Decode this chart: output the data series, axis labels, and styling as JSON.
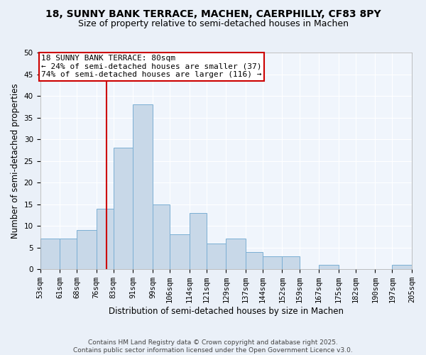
{
  "title1": "18, SUNNY BANK TERRACE, MACHEN, CAERPHILLY, CF83 8PY",
  "title2": "Size of property relative to semi-detached houses in Machen",
  "xlabel": "Distribution of semi-detached houses by size in Machen",
  "ylabel": "Number of semi-detached properties",
  "bin_labels": [
    "53sqm",
    "61sqm",
    "68sqm",
    "76sqm",
    "83sqm",
    "91sqm",
    "99sqm",
    "106sqm",
    "114sqm",
    "121sqm",
    "129sqm",
    "137sqm",
    "144sqm",
    "152sqm",
    "159sqm",
    "167sqm",
    "175sqm",
    "182sqm",
    "190sqm",
    "197sqm",
    "205sqm"
  ],
  "bin_edges": [
    53,
    61,
    68,
    76,
    83,
    91,
    99,
    106,
    114,
    121,
    129,
    137,
    144,
    152,
    159,
    167,
    175,
    182,
    190,
    197,
    205
  ],
  "values": [
    7,
    7,
    9,
    14,
    28,
    38,
    15,
    8,
    13,
    6,
    7,
    4,
    3,
    3,
    0,
    1,
    0,
    0,
    0,
    1,
    0
  ],
  "bar_color": "#c8d8e8",
  "bar_edge_color": "#7bafd4",
  "vline_x": 80,
  "vline_color": "#cc0000",
  "annotation_title": "18 SUNNY BANK TERRACE: 80sqm",
  "annotation_line1": "← 24% of semi-detached houses are smaller (37)",
  "annotation_line2": "74% of semi-detached houses are larger (116) →",
  "annotation_box_edge": "#cc0000",
  "ylim": [
    0,
    50
  ],
  "yticks": [
    0,
    5,
    10,
    15,
    20,
    25,
    30,
    35,
    40,
    45,
    50
  ],
  "footer": "Contains HM Land Registry data © Crown copyright and database right 2025.\nContains public sector information licensed under the Open Government Licence v3.0.",
  "background_color": "#eaf0f8",
  "plot_background": "#f0f5fc",
  "grid_color": "#ffffff",
  "title_fontsize": 10,
  "subtitle_fontsize": 9,
  "axis_label_fontsize": 8.5,
  "tick_fontsize": 7.5,
  "annotation_fontsize": 8,
  "footer_fontsize": 6.5
}
